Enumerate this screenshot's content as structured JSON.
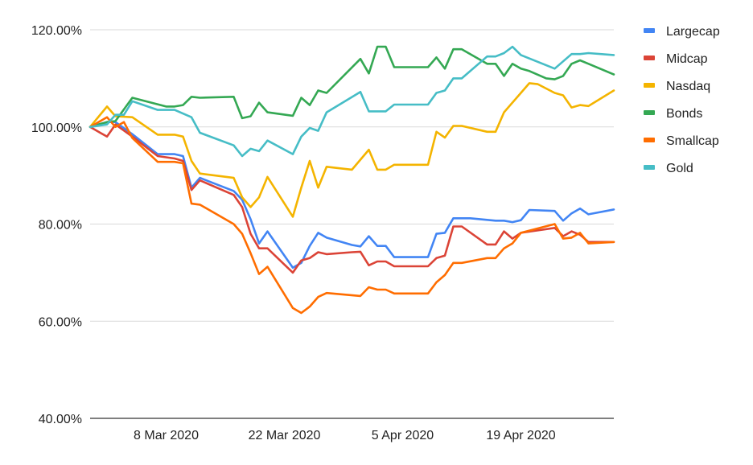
{
  "chart_data": {
    "type": "line",
    "title": "",
    "xlabel": "",
    "ylabel": "",
    "ylim": [
      0.4,
      1.2
    ],
    "y_ticks": [
      {
        "value": 1.2,
        "label": "120.00%"
      },
      {
        "value": 1.0,
        "label": "100.00%"
      },
      {
        "value": 0.8,
        "label": "80.00%"
      },
      {
        "value": 0.6,
        "label": "60.00%"
      },
      {
        "value": 0.4,
        "label": "40.00%"
      }
    ],
    "x_range": [
      "2020-02-28",
      "2020-04-27"
    ],
    "x_ticks": [
      {
        "date": "2020-03-08",
        "label": "8 Mar 2020"
      },
      {
        "date": "2020-03-22",
        "label": "22 Mar 2020"
      },
      {
        "date": "2020-04-05",
        "label": "5 Apr 2020"
      },
      {
        "date": "2020-04-19",
        "label": "19 Apr 2020"
      }
    ],
    "grid": true,
    "legend_position": "right",
    "series": [
      {
        "name": "Largecap",
        "color": "#4285f4",
        "points": [
          [
            "2020-02-28",
            1.0
          ],
          [
            "2020-03-01",
            1.01
          ],
          [
            "2020-03-02",
            1.01
          ],
          [
            "2020-03-04",
            0.985
          ],
          [
            "2020-03-07",
            0.944
          ],
          [
            "2020-03-09",
            0.944
          ],
          [
            "2020-03-10",
            0.94
          ],
          [
            "2020-03-11",
            0.875
          ],
          [
            "2020-03-12",
            0.895
          ],
          [
            "2020-03-16",
            0.868
          ],
          [
            "2020-03-17",
            0.85
          ],
          [
            "2020-03-18",
            0.81
          ],
          [
            "2020-03-19",
            0.76
          ],
          [
            "2020-03-20",
            0.785
          ],
          [
            "2020-03-23",
            0.71
          ],
          [
            "2020-03-24",
            0.72
          ],
          [
            "2020-03-25",
            0.755
          ],
          [
            "2020-03-26",
            0.782
          ],
          [
            "2020-03-27",
            0.772
          ],
          [
            "2020-03-30",
            0.757
          ],
          [
            "2020-03-31",
            0.754
          ],
          [
            "2020-04-01",
            0.775
          ],
          [
            "2020-04-02",
            0.755
          ],
          [
            "2020-04-03",
            0.755
          ],
          [
            "2020-04-04",
            0.732
          ],
          [
            "2020-04-06",
            0.732
          ],
          [
            "2020-04-08",
            0.732
          ],
          [
            "2020-04-09",
            0.78
          ],
          [
            "2020-04-10",
            0.782
          ],
          [
            "2020-04-11",
            0.812
          ],
          [
            "2020-04-13",
            0.812
          ],
          [
            "2020-04-16",
            0.807
          ],
          [
            "2020-04-17",
            0.807
          ],
          [
            "2020-04-18",
            0.804
          ],
          [
            "2020-04-19",
            0.808
          ],
          [
            "2020-04-20",
            0.829
          ],
          [
            "2020-04-23",
            0.827
          ],
          [
            "2020-04-24",
            0.807
          ],
          [
            "2020-04-25",
            0.822
          ],
          [
            "2020-04-26",
            0.832
          ],
          [
            "2020-04-27",
            0.82
          ],
          [
            "2020-04-30",
            0.83
          ]
        ]
      },
      {
        "name": "Midcap",
        "color": "#db4437",
        "points": [
          [
            "2020-02-28",
            1.0
          ],
          [
            "2020-03-01",
            0.98
          ],
          [
            "2020-03-02",
            1.005
          ],
          [
            "2020-03-04",
            0.98
          ],
          [
            "2020-03-07",
            0.94
          ],
          [
            "2020-03-09",
            0.935
          ],
          [
            "2020-03-10",
            0.93
          ],
          [
            "2020-03-11",
            0.87
          ],
          [
            "2020-03-12",
            0.89
          ],
          [
            "2020-03-16",
            0.86
          ],
          [
            "2020-03-17",
            0.835
          ],
          [
            "2020-03-18",
            0.78
          ],
          [
            "2020-03-19",
            0.75
          ],
          [
            "2020-03-20",
            0.75
          ],
          [
            "2020-03-23",
            0.7
          ],
          [
            "2020-03-24",
            0.725
          ],
          [
            "2020-03-25",
            0.73
          ],
          [
            "2020-03-26",
            0.742
          ],
          [
            "2020-03-27",
            0.738
          ],
          [
            "2020-03-30",
            0.742
          ],
          [
            "2020-03-31",
            0.743
          ],
          [
            "2020-04-01",
            0.715
          ],
          [
            "2020-04-02",
            0.723
          ],
          [
            "2020-04-03",
            0.723
          ],
          [
            "2020-04-04",
            0.713
          ],
          [
            "2020-04-06",
            0.713
          ],
          [
            "2020-04-08",
            0.713
          ],
          [
            "2020-04-09",
            0.73
          ],
          [
            "2020-04-10",
            0.735
          ],
          [
            "2020-04-11",
            0.795
          ],
          [
            "2020-04-12",
            0.795
          ],
          [
            "2020-04-15",
            0.758
          ],
          [
            "2020-04-16",
            0.758
          ],
          [
            "2020-04-17",
            0.785
          ],
          [
            "2020-04-18",
            0.77
          ],
          [
            "2020-04-19",
            0.782
          ],
          [
            "2020-04-23",
            0.792
          ],
          [
            "2020-04-24",
            0.775
          ],
          [
            "2020-04-25",
            0.785
          ],
          [
            "2020-04-26",
            0.778
          ],
          [
            "2020-04-27",
            0.763
          ],
          [
            "2020-04-30",
            0.763
          ]
        ]
      },
      {
        "name": "Nasdaq",
        "color": "#f4b400",
        "points": [
          [
            "2020-02-28",
            1.0
          ],
          [
            "2020-03-01",
            1.042
          ],
          [
            "2020-03-02",
            1.022
          ],
          [
            "2020-03-04",
            1.02
          ],
          [
            "2020-03-07",
            0.984
          ],
          [
            "2020-03-09",
            0.984
          ],
          [
            "2020-03-10",
            0.98
          ],
          [
            "2020-03-11",
            0.93
          ],
          [
            "2020-03-12",
            0.904
          ],
          [
            "2020-03-16",
            0.895
          ],
          [
            "2020-03-17",
            0.855
          ],
          [
            "2020-03-18",
            0.835
          ],
          [
            "2020-03-19",
            0.855
          ],
          [
            "2020-03-20",
            0.897
          ],
          [
            "2020-03-23",
            0.815
          ],
          [
            "2020-03-24",
            0.875
          ],
          [
            "2020-03-25",
            0.93
          ],
          [
            "2020-03-26",
            0.875
          ],
          [
            "2020-03-27",
            0.918
          ],
          [
            "2020-03-30",
            0.912
          ],
          [
            "2020-04-01",
            0.953
          ],
          [
            "2020-04-02",
            0.912
          ],
          [
            "2020-04-03",
            0.912
          ],
          [
            "2020-04-04",
            0.922
          ],
          [
            "2020-04-06",
            0.922
          ],
          [
            "2020-04-08",
            0.922
          ],
          [
            "2020-04-09",
            0.99
          ],
          [
            "2020-04-10",
            0.978
          ],
          [
            "2020-04-11",
            1.002
          ],
          [
            "2020-04-12",
            1.002
          ],
          [
            "2020-04-15",
            0.99
          ],
          [
            "2020-04-16",
            0.99
          ],
          [
            "2020-04-17",
            1.03
          ],
          [
            "2020-04-20",
            1.09
          ],
          [
            "2020-04-21",
            1.088
          ],
          [
            "2020-04-23",
            1.07
          ],
          [
            "2020-04-24",
            1.065
          ],
          [
            "2020-04-25",
            1.04
          ],
          [
            "2020-04-26",
            1.045
          ],
          [
            "2020-04-27",
            1.043
          ],
          [
            "2020-04-30",
            1.075
          ]
        ]
      },
      {
        "name": "Bonds",
        "color": "#34a853",
        "points": [
          [
            "2020-02-28",
            1.0
          ],
          [
            "2020-03-01",
            1.01
          ],
          [
            "2020-03-02",
            1.012
          ],
          [
            "2020-03-04",
            1.06
          ],
          [
            "2020-03-08",
            1.042
          ],
          [
            "2020-03-09",
            1.042
          ],
          [
            "2020-03-10",
            1.045
          ],
          [
            "2020-03-11",
            1.062
          ],
          [
            "2020-03-12",
            1.06
          ],
          [
            "2020-03-16",
            1.062
          ],
          [
            "2020-03-17",
            1.018
          ],
          [
            "2020-03-18",
            1.022
          ],
          [
            "2020-03-19",
            1.05
          ],
          [
            "2020-03-20",
            1.03
          ],
          [
            "2020-03-23",
            1.023
          ],
          [
            "2020-03-24",
            1.06
          ],
          [
            "2020-03-25",
            1.045
          ],
          [
            "2020-03-26",
            1.075
          ],
          [
            "2020-03-27",
            1.07
          ],
          [
            "2020-03-31",
            1.14
          ],
          [
            "2020-04-01",
            1.11
          ],
          [
            "2020-04-02",
            1.165
          ],
          [
            "2020-04-03",
            1.165
          ],
          [
            "2020-04-04",
            1.123
          ],
          [
            "2020-04-08",
            1.123
          ],
          [
            "2020-04-09",
            1.143
          ],
          [
            "2020-04-10",
            1.12
          ],
          [
            "2020-04-11",
            1.16
          ],
          [
            "2020-04-12",
            1.16
          ],
          [
            "2020-04-15",
            1.13
          ],
          [
            "2020-04-16",
            1.13
          ],
          [
            "2020-04-17",
            1.105
          ],
          [
            "2020-04-18",
            1.13
          ],
          [
            "2020-04-19",
            1.12
          ],
          [
            "2020-04-20",
            1.115
          ],
          [
            "2020-04-22",
            1.1
          ],
          [
            "2020-04-23",
            1.098
          ],
          [
            "2020-04-24",
            1.105
          ],
          [
            "2020-04-25",
            1.13
          ],
          [
            "2020-04-26",
            1.137
          ],
          [
            "2020-04-27",
            1.13
          ],
          [
            "2020-04-30",
            1.108
          ]
        ]
      },
      {
        "name": "Smallcap",
        "color": "#ff6d00",
        "points": [
          [
            "2020-02-28",
            1.0
          ],
          [
            "2020-03-01",
            1.02
          ],
          [
            "2020-03-02",
            1.0
          ],
          [
            "2020-03-03",
            1.01
          ],
          [
            "2020-03-04",
            0.977
          ],
          [
            "2020-03-07",
            0.928
          ],
          [
            "2020-03-09",
            0.928
          ],
          [
            "2020-03-10",
            0.925
          ],
          [
            "2020-03-11",
            0.842
          ],
          [
            "2020-03-12",
            0.84
          ],
          [
            "2020-03-16",
            0.8
          ],
          [
            "2020-03-17",
            0.78
          ],
          [
            "2020-03-18",
            0.74
          ],
          [
            "2020-03-19",
            0.697
          ],
          [
            "2020-03-20",
            0.712
          ],
          [
            "2020-03-23",
            0.627
          ],
          [
            "2020-03-24",
            0.617
          ],
          [
            "2020-03-25",
            0.63
          ],
          [
            "2020-03-26",
            0.65
          ],
          [
            "2020-03-27",
            0.658
          ],
          [
            "2020-03-31",
            0.652
          ],
          [
            "2020-04-01",
            0.67
          ],
          [
            "2020-04-02",
            0.665
          ],
          [
            "2020-04-03",
            0.665
          ],
          [
            "2020-04-04",
            0.657
          ],
          [
            "2020-04-08",
            0.657
          ],
          [
            "2020-04-09",
            0.68
          ],
          [
            "2020-04-10",
            0.695
          ],
          [
            "2020-04-11",
            0.72
          ],
          [
            "2020-04-12",
            0.72
          ],
          [
            "2020-04-15",
            0.73
          ],
          [
            "2020-04-16",
            0.73
          ],
          [
            "2020-04-17",
            0.75
          ],
          [
            "2020-04-18",
            0.76
          ],
          [
            "2020-04-19",
            0.782
          ],
          [
            "2020-04-23",
            0.8
          ],
          [
            "2020-04-24",
            0.77
          ],
          [
            "2020-04-25",
            0.772
          ],
          [
            "2020-04-26",
            0.782
          ],
          [
            "2020-04-27",
            0.76
          ],
          [
            "2020-04-30",
            0.763
          ]
        ]
      },
      {
        "name": "Gold",
        "color": "#46bdc6",
        "points": [
          [
            "2020-02-28",
            1.0
          ],
          [
            "2020-03-01",
            1.005
          ],
          [
            "2020-03-02",
            1.025
          ],
          [
            "2020-03-03",
            1.025
          ],
          [
            "2020-03-04",
            1.053
          ],
          [
            "2020-03-07",
            1.035
          ],
          [
            "2020-03-09",
            1.035
          ],
          [
            "2020-03-11",
            1.02
          ],
          [
            "2020-03-12",
            0.988
          ],
          [
            "2020-03-16",
            0.962
          ],
          [
            "2020-03-17",
            0.94
          ],
          [
            "2020-03-18",
            0.955
          ],
          [
            "2020-03-19",
            0.95
          ],
          [
            "2020-03-20",
            0.972
          ],
          [
            "2020-03-23",
            0.944
          ],
          [
            "2020-03-24",
            0.98
          ],
          [
            "2020-03-25",
            0.998
          ],
          [
            "2020-03-26",
            0.992
          ],
          [
            "2020-03-27",
            1.03
          ],
          [
            "2020-03-31",
            1.072
          ],
          [
            "2020-04-01",
            1.032
          ],
          [
            "2020-04-03",
            1.032
          ],
          [
            "2020-04-04",
            1.046
          ],
          [
            "2020-04-08",
            1.046
          ],
          [
            "2020-04-09",
            1.07
          ],
          [
            "2020-04-10",
            1.075
          ],
          [
            "2020-04-11",
            1.1
          ],
          [
            "2020-04-12",
            1.1
          ],
          [
            "2020-04-15",
            1.145
          ],
          [
            "2020-04-16",
            1.145
          ],
          [
            "2020-04-17",
            1.152
          ],
          [
            "2020-04-18",
            1.165
          ],
          [
            "2020-04-19",
            1.148
          ],
          [
            "2020-04-23",
            1.12
          ],
          [
            "2020-04-25",
            1.15
          ],
          [
            "2020-04-26",
            1.15
          ],
          [
            "2020-04-27",
            1.152
          ],
          [
            "2020-04-30",
            1.148
          ]
        ]
      }
    ]
  }
}
